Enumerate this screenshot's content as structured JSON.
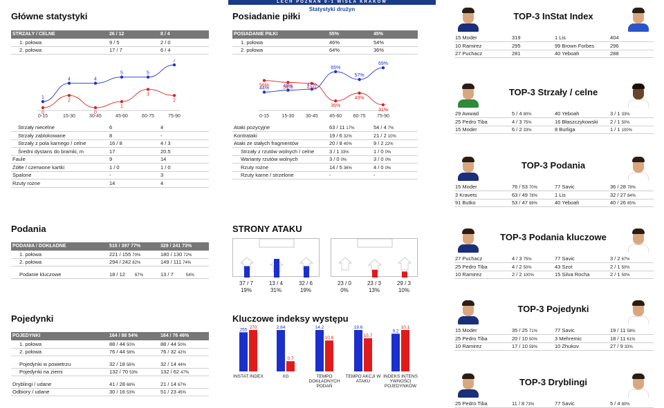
{
  "header": {
    "banner": "LECH POZNAŃ 0-1 WISŁA KRAKÓW",
    "subtitle": "Statystyki drużyn"
  },
  "glowne": {
    "title": "Główne statystyki",
    "head": [
      "STRZAŁY / CELNE",
      "26 / 12",
      "8 / 4"
    ],
    "rows": [
      [
        "1. połowa",
        "9 / 5",
        "2 / 0"
      ],
      [
        "2. połowa",
        "17 / 7",
        "6 / 4"
      ]
    ],
    "chart_data": {
      "type": "line",
      "categories": [
        "0-15",
        "15-30",
        "30-45",
        "45-60",
        "60-75",
        "75-90"
      ],
      "series": [
        {
          "values": [
            1,
            4,
            4,
            5,
            5,
            7
          ],
          "color": "#2233cc"
        },
        {
          "values": [
            0,
            2,
            0,
            1,
            3,
            2
          ],
          "color": "#dd2222"
        }
      ]
    },
    "rows2": [
      [
        "Strzały niecelne",
        "6",
        "4"
      ],
      [
        "Strzały zablokowane",
        "8",
        "-"
      ],
      [
        "Strzały z pola karnego / celne",
        "16 / 8",
        "4 / 3"
      ],
      [
        "Średni dystans do bramki, m",
        "17",
        "20.5"
      ],
      [
        "Faule",
        "9",
        "14"
      ],
      [
        "Żółte / czerwone kartki",
        "1 / 0",
        "1 / 0"
      ],
      [
        "Spalone",
        "-",
        "3"
      ],
      [
        "Rzuty rożne",
        "14",
        "4"
      ]
    ]
  },
  "posiadanie": {
    "title": "Posiadanie piłki",
    "head": [
      "POSIADANIE PIŁKI",
      "55%",
      "45%"
    ],
    "rows": [
      [
        "1. połowa",
        "46%",
        "54%"
      ],
      [
        "2. połowa",
        "64%",
        "36%"
      ]
    ],
    "chart_data": {
      "type": "line",
      "categories": [
        "0-15",
        "15-30",
        "30-45",
        "45-60",
        "60-75",
        "75-90"
      ],
      "series": [
        {
          "values": [
            44,
            46,
            47,
            65,
            57,
            69
          ],
          "labels": [
            "44%",
            "46%",
            "47%",
            "65%",
            "57%",
            "69%"
          ],
          "color": "#2233cc"
        },
        {
          "values": [
            56,
            54,
            53,
            35,
            43,
            31
          ],
          "labels": [
            "56%",
            "54%",
            "53%",
            "35%",
            "43%",
            "31%"
          ],
          "color": "#dd2222"
        }
      ]
    },
    "rows2": [
      [
        "Ataki pozycyjne",
        "63 / 11",
        "17%",
        "54 / 4",
        "7%"
      ],
      [
        "Kontrataki",
        "19 / 6",
        "32%",
        "21 / 2",
        "10%"
      ],
      [
        "Ataki ze stałych fragmentów",
        "20 / 8",
        "40%",
        "9 / 2",
        "22%"
      ],
      [
        "Strzały z rzutów wolnych / celne",
        "3 / 1",
        "33%",
        "1 / 0",
        "0%"
      ],
      [
        "Warianty rzutów wolnych",
        "3 / 0",
        "0%",
        "3 / 0",
        "0%"
      ],
      [
        "Rzuty rożne",
        "14 / 5",
        "36%",
        "4 / 0",
        "0%"
      ],
      [
        "Rzuty karne / strzelone",
        "-",
        "",
        "-",
        ""
      ]
    ]
  },
  "podania": {
    "title": "Podania",
    "head": [
      "PODANIA / DOKŁADNE",
      "515 / 397 77%",
      "329 / 241 73%"
    ],
    "rows": [
      [
        "1. połowa",
        "221 / 155",
        "70%",
        "180 / 130",
        "72%"
      ],
      [
        "2. połowa",
        "294 / 242",
        "82%",
        "149 / 111",
        "74%"
      ]
    ],
    "key": [
      "Podanie kluczowe",
      "18 / 12",
      "67%",
      "13 / 7",
      "54%"
    ]
  },
  "strony": {
    "title": "STRONY ATAKU",
    "home": [
      {
        "v": "37 / 7",
        "p": "19%"
      },
      {
        "v": "13 / 4",
        "p": "31%"
      },
      {
        "v": "32 / 6",
        "p": "19%"
      }
    ],
    "away": [
      {
        "v": "23 / 0",
        "p": "0%"
      },
      {
        "v": "23 / 3",
        "p": "13%"
      },
      {
        "v": "29 / 3",
        "p": "10%"
      }
    ],
    "home_color": "#1a2fcc",
    "away_color": "#e11b1b"
  },
  "pojedynki": {
    "title": "Pojedynki",
    "head": [
      "POJEDYNKI",
      "164 / 88 54%",
      "164 / 76 46%"
    ],
    "rows": [
      [
        "1. połowa",
        "88 / 44",
        "50%",
        "88 / 44",
        "50%"
      ],
      [
        "2. połowa",
        "76 / 44",
        "58%",
        "76 / 32",
        "42%"
      ]
    ],
    "rows2": [
      [
        "Pojedynki w powietrzu",
        "32 / 18",
        "56%",
        "32 / 14",
        "44%"
      ],
      [
        "Pojedynki na ziemi",
        "132 / 70",
        "53%",
        "132 / 62",
        "47%"
      ]
    ],
    "rows3": [
      [
        "Dryblingi / udane",
        "41 / 28",
        "68%",
        "21 / 14",
        "67%"
      ],
      [
        "Odbiory / udane",
        "30 / 16",
        "53%",
        "51 / 23",
        "45%"
      ]
    ]
  },
  "indeksy": {
    "title": "Kluczowe indeksy występu",
    "chart_data": {
      "type": "bar",
      "categories": [
        "INSTAT INDEX",
        "XG",
        "TEMPO DOKŁADNYCH PODAŃ",
        "TEMPO AKCJI W ATAKU",
        "INDEKS INTENSYWNOŚCI POJEDYNKÓW"
      ],
      "labels": [
        "INSTAT INDEX",
        "XG",
        "TEMPO\nDOKŁADNYCH\nPODAŃ",
        "TEMPO AKCJI W\nATAKU",
        "INDEKS INTENS\nYWNOŚCI\nPOJEDYNKÓW"
      ],
      "series": [
        {
          "values": [
            255,
            2.84,
            14.2,
            19.6,
            9.2
          ],
          "labels": [
            "255",
            "2.84",
            "14.2",
            "19.6",
            "9.2"
          ],
          "color": "#1a2fcc"
        },
        {
          "values": [
            270,
            0.7,
            10.6,
            15.7,
            10.1
          ],
          "labels": [
            "270",
            "0.7",
            "10.6",
            "15.7",
            "10.1"
          ],
          "color": "#e11b1b"
        }
      ]
    }
  },
  "top": [
    {
      "title": "TOP-3 InStat Index",
      "home": [
        [
          "15 Moder",
          "319",
          ""
        ],
        [
          "10 Ramirez",
          "295",
          ""
        ],
        [
          "27 Puchacz",
          "281",
          ""
        ]
      ],
      "away": [
        [
          "1 Lis",
          "404",
          ""
        ],
        [
          "99 Brown Forbes",
          "296",
          ""
        ],
        [
          "40 Yeboah",
          "288",
          ""
        ]
      ],
      "lshirt": "#1a2f7a",
      "rshirt": "#2a55c8"
    },
    {
      "title": "TOP-3 Strzały / celne",
      "home": [
        [
          "29 Awwad",
          "5 / 4",
          "80%"
        ],
        [
          "25 Pedro Tiba",
          "4 / 3",
          "75%"
        ],
        [
          "15 Moder",
          "6 / 2",
          "33%"
        ]
      ],
      "away": [
        [
          "40 Yeboah",
          "3 / 1",
          "33%"
        ],
        [
          "16 Błaszczykowski",
          "2 / 1",
          "50%"
        ],
        [
          "8  Burliga",
          "1 / 1",
          "100%"
        ]
      ],
      "lshirt": "#2e8a3a",
      "rshirt": "#ffffff"
    },
    {
      "title": "TOP-3 Podania",
      "home": [
        [
          "15 Moder",
          "76 / 53",
          "70%"
        ],
        [
          "3  Kravets",
          "63 / 49",
          "78%"
        ],
        [
          "91 Butko",
          "53 / 47",
          "89%"
        ]
      ],
      "away": [
        [
          "77 Savic",
          "36 / 28",
          "78%"
        ],
        [
          "1  Lis",
          "32 / 27",
          "84%"
        ],
        [
          "40 Yeboah",
          "40 / 26",
          "65%"
        ]
      ],
      "lshirt": "#1a2f7a",
      "rshirt": "#ffffff"
    },
    {
      "title": "TOP-3 Podania kluczowe",
      "home": [
        [
          "27 Puchacz",
          "4 / 3",
          "75%"
        ],
        [
          "25 Pedro Tiba",
          "4 / 2",
          "50%"
        ],
        [
          "10 Ramirez",
          "2 / 2",
          "100%"
        ]
      ],
      "away": [
        [
          "77 Savic",
          "3 / 2",
          "67%"
        ],
        [
          "43 Szot",
          "2 / 1",
          "50%"
        ],
        [
          "15 Silva Rocha",
          "2 / 1",
          "50%"
        ]
      ],
      "lshirt": "#1a2f7a",
      "rshirt": "#ffffff"
    },
    {
      "title": "TOP-3 Pojedynki",
      "home": [
        [
          "15 Moder",
          "35 / 25",
          "71%"
        ],
        [
          "25 Pedro Tiba",
          "20 / 10",
          "50%"
        ],
        [
          "10 Ramirez",
          "17 / 10",
          "59%"
        ]
      ],
      "away": [
        [
          "77 Savic",
          "19 / 11",
          "58%"
        ],
        [
          "3  Mehremic",
          "18 / 11",
          "61%"
        ],
        [
          "10 Zhukov",
          "27 / 9",
          "33%"
        ]
      ],
      "lshirt": "#1a2f7a",
      "rshirt": "#ffffff"
    },
    {
      "title": "TOP-3 Dryblingi",
      "home": [
        [
          "25 Pedro Tiba",
          "11 / 8",
          "73%"
        ]
      ],
      "away": [
        [
          "77 Savic",
          "5 / 4",
          "80%"
        ]
      ],
      "lshirt": "#1a2f7a",
      "rshirt": "#ffffff"
    }
  ]
}
